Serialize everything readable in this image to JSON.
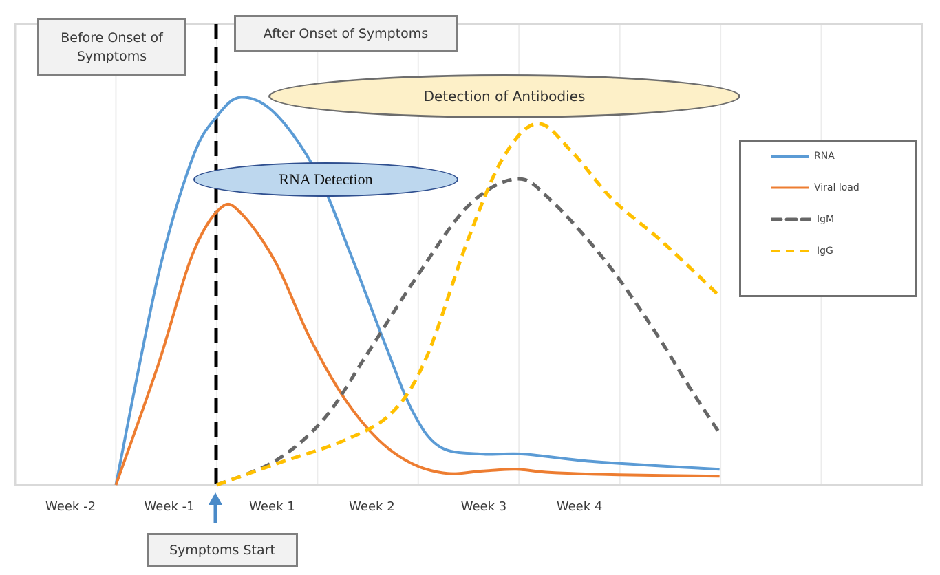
{
  "chart_data": {
    "type": "line",
    "title": "",
    "xlabel": "",
    "ylabel": "",
    "xlim": [
      0,
      9
    ],
    "ylim": [
      0,
      100
    ],
    "grid": "vertical",
    "legend_position": "right",
    "x_ticks": [
      {
        "label": "Week -2",
        "x": 0.55
      },
      {
        "label": "Week -1",
        "x": 1.53
      },
      {
        "label": "Week 1",
        "x": 2.55
      },
      {
        "label": "Week 2",
        "x": 3.54
      },
      {
        "label": "Week 3",
        "x": 4.65
      },
      {
        "label": "Week 4",
        "x": 5.6
      }
    ],
    "symptom_onset_x": 2.0,
    "series": [
      {
        "name": "RNA",
        "color": "#5b9bd5",
        "dashed": false,
        "x": [
          1.0,
          1.42,
          1.76,
          2.0,
          2.24,
          2.58,
          2.99,
          3.33,
          3.67,
          3.95,
          4.22,
          4.63,
          5.04,
          5.66,
          6.34,
          6.99
        ],
        "y": [
          0,
          45.5,
          70.9,
          79.9,
          84.1,
          80.6,
          67.9,
          50.0,
          30.6,
          15.7,
          8.2,
          6.7,
          6.7,
          5.2,
          4.2,
          3.4
        ]
      },
      {
        "name": "Viral load",
        "color": "#ed7d31",
        "dashed": false,
        "x": [
          1.0,
          1.42,
          1.76,
          2.04,
          2.24,
          2.58,
          2.92,
          3.27,
          3.61,
          3.95,
          4.29,
          4.63,
          4.97,
          5.31,
          5.99,
          6.99
        ],
        "y": [
          0,
          26.1,
          50.0,
          60.1,
          59.0,
          48.5,
          32.1,
          18.7,
          9.7,
          4.5,
          2.5,
          3.0,
          3.4,
          2.7,
          2.2,
          1.9
        ]
      },
      {
        "name": "IgM",
        "color": "#666666",
        "dashed": true,
        "x": [
          2.0,
          2.58,
          3.06,
          3.47,
          3.95,
          4.49,
          4.97,
          5.31,
          5.86,
          6.34,
          6.68,
          6.99
        ],
        "y": [
          0,
          5.2,
          14.2,
          27.6,
          44.0,
          60.4,
          66.4,
          61.9,
          48.5,
          33.6,
          21.6,
          11.2
        ]
      },
      {
        "name": "IgG",
        "color": "#ffc000",
        "dashed": true,
        "x": [
          2.0,
          2.58,
          3.27,
          3.74,
          4.08,
          4.49,
          4.84,
          5.18,
          5.52,
          5.93,
          6.41,
          6.99
        ],
        "y": [
          0,
          4.5,
          9.7,
          15.7,
          27.6,
          53.0,
          70.9,
          78.4,
          72.4,
          61.9,
          53.0,
          41.0
        ]
      }
    ]
  },
  "annotations": {
    "before_onset": "Before Onset of Symptoms",
    "after_onset": "After Onset of Symptoms",
    "antibodies": "Detection of Antibodies",
    "rna_detection": "RNA Detection",
    "symptoms_start": "Symptoms Start"
  },
  "legend": {
    "items": [
      {
        "label": "RNA"
      },
      {
        "label": "Viral load"
      },
      {
        "label": "IgM"
      },
      {
        "label": "IgG"
      }
    ]
  }
}
